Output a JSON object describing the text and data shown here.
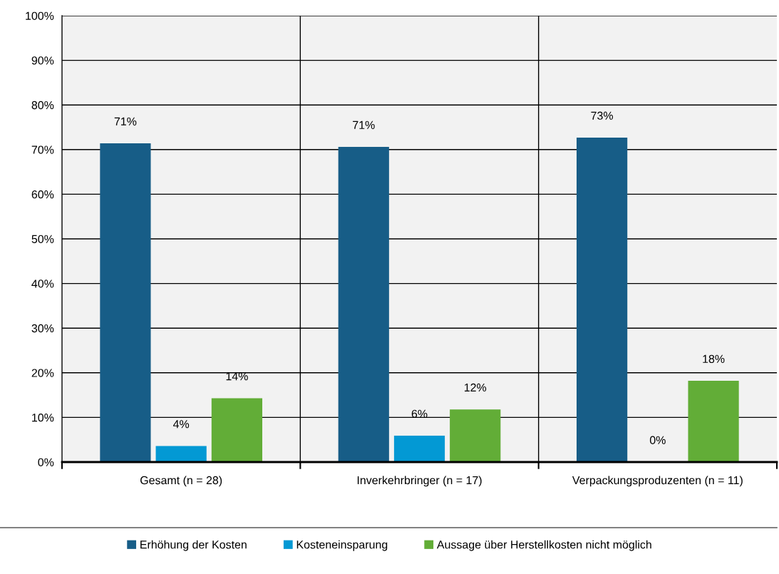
{
  "chart_data": {
    "type": "bar",
    "categories": [
      "Gesamt (n = 28)",
      "Inverkehrbringer (n = 17)",
      "Verpackungsproduzenten (n = 11)"
    ],
    "series": [
      {
        "name": "Erhöhung der Kosten",
        "color": "#175d87",
        "values": [
          71.4,
          70.6,
          72.7
        ],
        "value_labels": [
          "71%",
          "71%",
          "73%"
        ]
      },
      {
        "name": "Kosteneinsparung",
        "color": "#0399d4",
        "values": [
          3.6,
          5.9,
          0
        ],
        "value_labels": [
          "4%",
          "6%",
          "0%"
        ]
      },
      {
        "name": "Aussage über Herstellkosten nicht möglich",
        "color": "#62ad37",
        "values": [
          14.3,
          11.8,
          18.2
        ],
        "value_labels": [
          "14%",
          "12%",
          "18%"
        ]
      }
    ],
    "ylim": [
      0,
      100
    ],
    "yticks": [
      {
        "value": 0,
        "label": "0%"
      },
      {
        "value": 10,
        "label": "10%"
      },
      {
        "value": 20,
        "label": "20%"
      },
      {
        "value": 30,
        "label": "30%"
      },
      {
        "value": 40,
        "label": "40%"
      },
      {
        "value": 50,
        "label": "50%"
      },
      {
        "value": 60,
        "label": "60%"
      },
      {
        "value": 70,
        "label": "70%"
      },
      {
        "value": 80,
        "label": "80%"
      },
      {
        "value": 90,
        "label": "90%"
      },
      {
        "value": 100,
        "label": "100%"
      }
    ],
    "grid": true,
    "legend": "bottom"
  }
}
